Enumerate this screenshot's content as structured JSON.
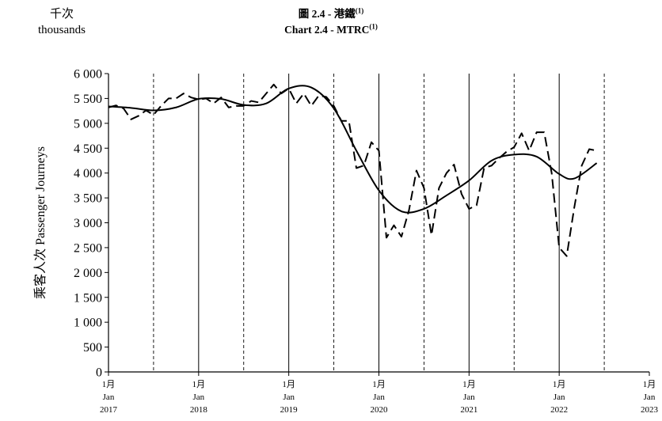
{
  "unit": {
    "zh": "千次",
    "en": "thousands"
  },
  "title": {
    "zh_prefix": "圖 2.4 - ",
    "zh_name": "港鐵",
    "en_prefix": "Chart 2.4 - ",
    "en_name": "MTRC",
    "note": "(1)"
  },
  "chart_data": {
    "type": "line",
    "ylabel": "乘客人次  Passenger Journeys",
    "ylim": [
      0,
      6000
    ],
    "yticks": [
      0,
      500,
      1000,
      1500,
      2000,
      2500,
      3000,
      3500,
      4000,
      4500,
      5000,
      5500,
      6000
    ],
    "ytick_labels": [
      "0",
      "500",
      "1 000",
      "1 500",
      "2 000",
      "2 500",
      "3 000",
      "3 500",
      "4 000",
      "4 500",
      "5 000",
      "5 500",
      "6 000"
    ],
    "xlim": [
      "2017-01",
      "2023-01"
    ],
    "x_tick_labels": [
      {
        "month": "1月",
        "jan": "Jan",
        "year": "2017"
      },
      {
        "month": "1月",
        "jan": "Jan",
        "year": "2018"
      },
      {
        "month": "1月",
        "jan": "Jan",
        "year": "2019"
      },
      {
        "month": "1月",
        "jan": "Jan",
        "year": "2020"
      },
      {
        "month": "1月",
        "jan": "Jan",
        "year": "2021"
      },
      {
        "month": "1月",
        "jan": "Jan",
        "year": "2022"
      },
      {
        "month": "1月",
        "jan": "Jan",
        "year": "2023"
      }
    ],
    "grid": {
      "solid_vertical_at_each_january": true,
      "dashed_vertical_at_each_july": true
    },
    "series": [
      {
        "style": "dashed",
        "points": [
          [
            "2017-01",
            5320
          ],
          [
            "2017-02",
            5360
          ],
          [
            "2017-03",
            5300
          ],
          [
            "2017-04",
            5080
          ],
          [
            "2017-05",
            5150
          ],
          [
            "2017-06",
            5260
          ],
          [
            "2017-07",
            5170
          ],
          [
            "2017-08",
            5350
          ],
          [
            "2017-09",
            5500
          ],
          [
            "2017-10",
            5500
          ],
          [
            "2017-11",
            5600
          ],
          [
            "2017-12",
            5520
          ],
          [
            "2018-01",
            5480
          ],
          [
            "2018-02",
            5500
          ],
          [
            "2018-03",
            5400
          ],
          [
            "2018-04",
            5520
          ],
          [
            "2018-05",
            5320
          ],
          [
            "2018-06",
            5350
          ],
          [
            "2018-07",
            5350
          ],
          [
            "2018-08",
            5450
          ],
          [
            "2018-09",
            5420
          ],
          [
            "2018-10",
            5600
          ],
          [
            "2018-11",
            5780
          ],
          [
            "2018-12",
            5600
          ],
          [
            "2019-01",
            5700
          ],
          [
            "2019-02",
            5400
          ],
          [
            "2019-03",
            5600
          ],
          [
            "2019-04",
            5350
          ],
          [
            "2019-05",
            5560
          ],
          [
            "2019-06",
            5530
          ],
          [
            "2019-07",
            5350
          ],
          [
            "2019-08",
            5050
          ],
          [
            "2019-09",
            5050
          ],
          [
            "2019-10",
            4100
          ],
          [
            "2019-11",
            4150
          ],
          [
            "2019-12",
            4620
          ],
          [
            "2020-01",
            4450
          ],
          [
            "2020-02",
            2700
          ],
          [
            "2020-03",
            2950
          ],
          [
            "2020-04",
            2720
          ],
          [
            "2020-05",
            3250
          ],
          [
            "2020-06",
            4050
          ],
          [
            "2020-07",
            3700
          ],
          [
            "2020-08",
            2750
          ],
          [
            "2020-09",
            3700
          ],
          [
            "2020-10",
            4000
          ],
          [
            "2020-11",
            4170
          ],
          [
            "2020-12",
            3580
          ],
          [
            "2021-01",
            3280
          ],
          [
            "2021-02",
            3350
          ],
          [
            "2021-03",
            4100
          ],
          [
            "2021-04",
            4150
          ],
          [
            "2021-05",
            4300
          ],
          [
            "2021-06",
            4430
          ],
          [
            "2021-07",
            4520
          ],
          [
            "2021-08",
            4800
          ],
          [
            "2021-09",
            4450
          ],
          [
            "2021-10",
            4820
          ],
          [
            "2021-11",
            4820
          ],
          [
            "2021-12",
            4000
          ],
          [
            "2022-01",
            2500
          ],
          [
            "2022-02",
            2330
          ],
          [
            "2022-03",
            3300
          ],
          [
            "2022-04",
            4150
          ],
          [
            "2022-05",
            4480
          ],
          [
            "2022-06",
            4450
          ]
        ]
      },
      {
        "style": "solid",
        "points": [
          [
            "2017-01",
            5340
          ],
          [
            "2017-04",
            5310
          ],
          [
            "2017-07",
            5260
          ],
          [
            "2017-10",
            5320
          ],
          [
            "2018-01",
            5490
          ],
          [
            "2018-04",
            5490
          ],
          [
            "2018-07",
            5370
          ],
          [
            "2018-10",
            5400
          ],
          [
            "2019-01",
            5700
          ],
          [
            "2019-04",
            5720
          ],
          [
            "2019-07",
            5300
          ],
          [
            "2019-10",
            4450
          ],
          [
            "2020-01",
            3650
          ],
          [
            "2020-04",
            3230
          ],
          [
            "2020-07",
            3280
          ],
          [
            "2020-10",
            3550
          ],
          [
            "2021-01",
            3850
          ],
          [
            "2021-04",
            4250
          ],
          [
            "2021-07",
            4370
          ],
          [
            "2021-10",
            4330
          ],
          [
            "2022-01",
            3980
          ],
          [
            "2022-03",
            3890
          ],
          [
            "2022-06",
            4200
          ]
        ]
      }
    ]
  }
}
